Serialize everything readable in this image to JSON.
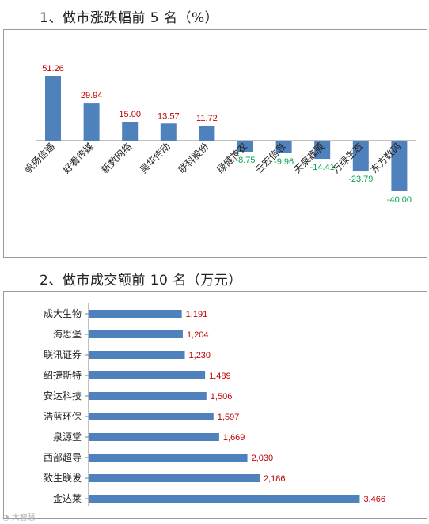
{
  "section1": {
    "title": "1、做市涨跌幅前 5 名（%）",
    "chart_data": {
      "type": "bar",
      "categories": [
        "帆扬信通",
        "好看传媒",
        "新数网络",
        "昊华传动",
        "联科股份",
        "绿健神农",
        "云宏信息",
        "天泉鑫膜",
        "万绿生态",
        "东方数码"
      ],
      "values": [
        51.26,
        29.94,
        15.0,
        13.57,
        11.72,
        -8.75,
        -9.96,
        -14.41,
        -23.79,
        -40.0
      ],
      "value_labels": [
        "51.26",
        "29.94",
        "15.00",
        "13.57",
        "11.72",
        "-8.75",
        "-9.96",
        "-14.41",
        "-23.79",
        "-40.00"
      ],
      "ylim": [
        -40,
        60
      ],
      "bar_color": "#4f81bd",
      "positive_label_color": "#c00000",
      "negative_label_color": "#00a650",
      "grid": false,
      "legend": "none"
    }
  },
  "section2": {
    "title": "2、做市成交额前 10 名（万元）",
    "chart_data": {
      "type": "bar",
      "orientation": "horizontal",
      "categories": [
        "成大生物",
        "海思堡",
        "联讯证券",
        "绍捷斯特",
        "安达科技",
        "浩蓝环保",
        "泉源堂",
        "西部超导",
        "致生联发",
        "金达莱"
      ],
      "values": [
        1191,
        1204,
        1230,
        1489,
        1506,
        1597,
        1669,
        2030,
        2186,
        3466
      ],
      "value_labels": [
        "1,191",
        "1,204",
        "1,230",
        "1,489",
        "1,506",
        "1,597",
        "1,669",
        "2,030",
        "2,186",
        "3,466"
      ],
      "xlim": [
        0,
        4000
      ],
      "bar_color": "#4f81bd",
      "label_color": "#c00000",
      "grid": false,
      "legend": "none"
    }
  },
  "watermark": "大智慧"
}
